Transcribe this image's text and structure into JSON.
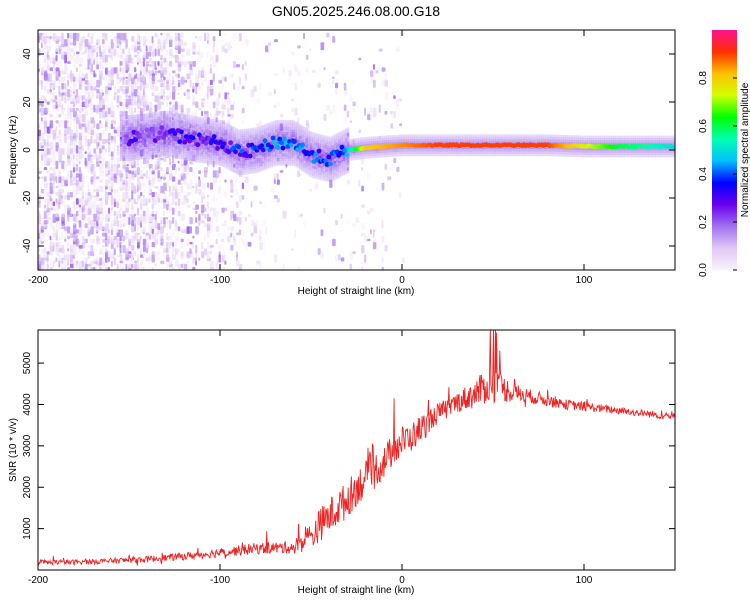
{
  "title": "GN05.2025.246.08.00.G18",
  "chart_data": [
    {
      "type": "heatmap",
      "name": "spectrogram",
      "xlabel": "Height of straight line (km)",
      "ylabel": "Frequency (Hz)",
      "xlim": [
        -200,
        150
      ],
      "ylim": [
        -50,
        50
      ],
      "xticks": [
        -200,
        -100,
        0,
        100
      ],
      "yticks": [
        -40,
        -20,
        0,
        20,
        40
      ],
      "colorbar": {
        "label": "Normalized spectral amplitude",
        "range": [
          0,
          1
        ],
        "ticks": [
          0.0,
          0.2,
          0.4,
          0.6,
          0.8
        ],
        "colormap": [
          "#f8f2fb",
          "#e0c8f5",
          "#a070f0",
          "#6a00ee",
          "#0000ff",
          "#00c0ff",
          "#00ffb0",
          "#00ff00",
          "#d0ff00",
          "#ffc000",
          "#ff3000",
          "#ff1090"
        ]
      },
      "ridge": {
        "x": [
          -150,
          -130,
          -110,
          -100,
          -90,
          -80,
          -70,
          -60,
          -50,
          -40,
          -30,
          -20,
          0,
          20,
          40,
          60,
          80,
          100,
          120,
          150
        ],
        "freq": [
          5,
          7,
          4,
          3,
          -1,
          0,
          3,
          3,
          -2,
          -4,
          0,
          1,
          2,
          2,
          2,
          2,
          2,
          1.5,
          1.5,
          1.5
        ],
        "amplitude": [
          0.25,
          0.25,
          0.3,
          0.3,
          0.35,
          0.35,
          0.4,
          0.4,
          0.4,
          0.35,
          0.45,
          0.8,
          0.85,
          0.9,
          0.9,
          0.9,
          0.9,
          0.75,
          0.6,
          0.5
        ]
      },
      "noise_floor_region": [
        -200,
        -80
      ]
    },
    {
      "type": "line",
      "name": "snr",
      "xlabel": "Height of straight line (km)",
      "ylabel": "SNR (10 * v/v)",
      "xlim": [
        -200,
        150
      ],
      "ylim": [
        0,
        5800
      ],
      "xticks": [
        -200,
        -100,
        0,
        100
      ],
      "yticks": [
        1000,
        2000,
        3000,
        4000,
        5000
      ],
      "color": "#ee2222",
      "series": [
        {
          "name": "SNR",
          "x": [
            -200,
            -180,
            -160,
            -140,
            -120,
            -100,
            -80,
            -60,
            -50,
            -45,
            -40,
            -35,
            -30,
            -25,
            -20,
            -15,
            -10,
            -5,
            0,
            5,
            10,
            15,
            20,
            25,
            30,
            35,
            40,
            45,
            50,
            55,
            60,
            70,
            80,
            90,
            100,
            110,
            120,
            130,
            140,
            150
          ],
          "values": [
            180,
            190,
            220,
            260,
            330,
            420,
            520,
            550,
            800,
            1100,
            1300,
            1500,
            1700,
            2000,
            2200,
            2400,
            2600,
            2900,
            3100,
            3200,
            3400,
            3600,
            3800,
            3900,
            4050,
            4150,
            4250,
            4400,
            4500,
            4400,
            4300,
            4200,
            4100,
            4000,
            3950,
            3900,
            3850,
            3800,
            3750,
            3700
          ],
          "spread": [
            120,
            120,
            130,
            150,
            180,
            220,
            280,
            300,
            700,
            800,
            900,
            900,
            900,
            900,
            900,
            900,
            800,
            800,
            800,
            700,
            700,
            600,
            500,
            500,
            500,
            600,
            700,
            800,
            900,
            700,
            500,
            350,
            300,
            250,
            220,
            200,
            180,
            180,
            180,
            180
          ]
        }
      ]
    }
  ]
}
